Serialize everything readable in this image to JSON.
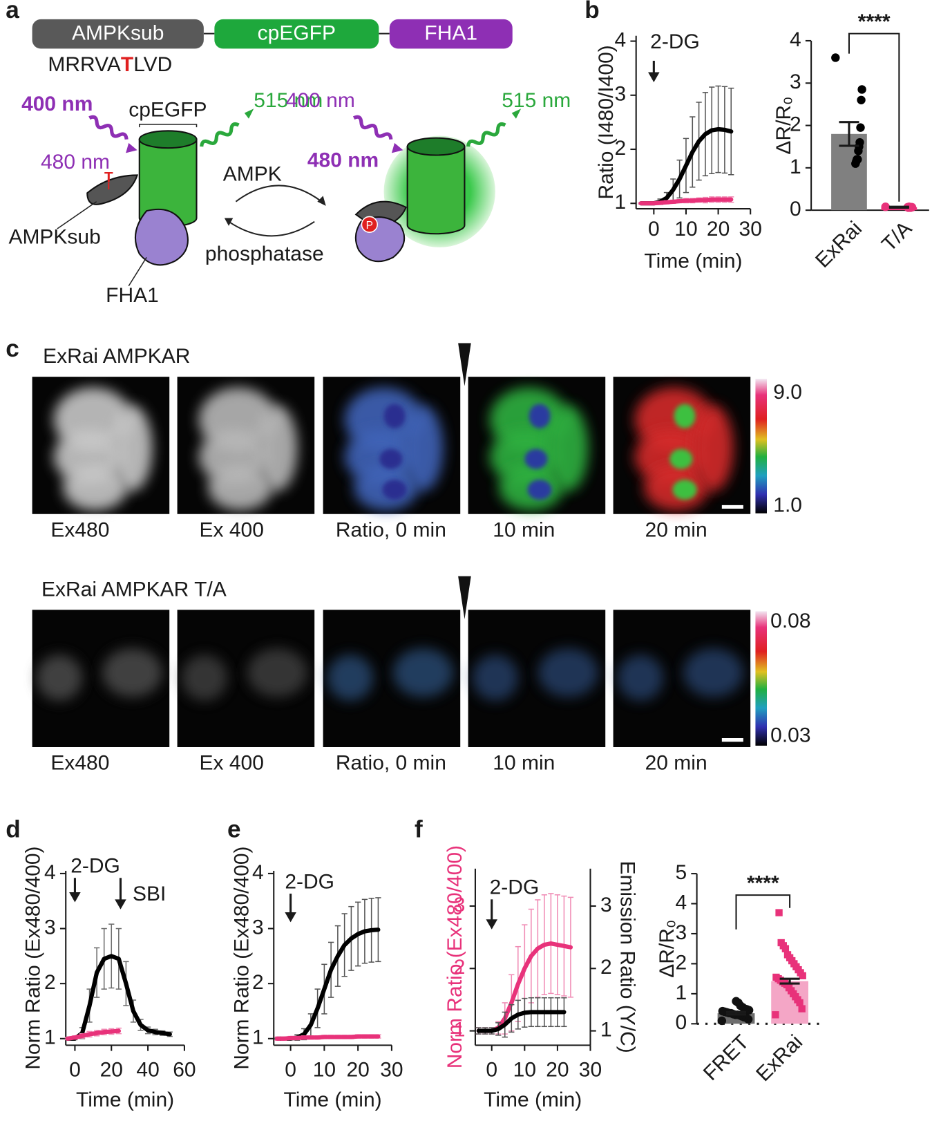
{
  "panel_labels": [
    "a",
    "b",
    "c",
    "d",
    "e",
    "f"
  ],
  "diagram": {
    "domains": [
      "AMPKsub",
      "cpEGFP",
      "FHA1"
    ],
    "sequence": [
      "MRRVA",
      "T",
      "LVD"
    ],
    "left": {
      "ex400": "400 nm",
      "cpegfp": "cpEGFP",
      "em515": "515 nm",
      "ex480": "480 nm",
      "site": "T",
      "sub": "AMPKsub",
      "fha1": "FHA1"
    },
    "ampk": "AMPK",
    "phosphatase": "phosphatase",
    "right": {
      "ex400": "400 nm",
      "em515": "515 nm",
      "ex480": "480 nm",
      "site": "P"
    }
  },
  "imaging": {
    "rows": [
      {
        "title": "ExRai AMPKAR",
        "captions": [
          "Ex480",
          "Ex 400",
          "Ratio, 0 min",
          "10 min",
          "20 min"
        ],
        "colorbar": [
          "9.0",
          "1.0"
        ]
      },
      {
        "title": "ExRai AMPKAR T/A",
        "captions": [
          "Ex480",
          "Ex 400",
          "Ratio, 0 min",
          "10 min",
          "20 min"
        ],
        "colorbar": [
          "0.08",
          "0.03"
        ]
      }
    ]
  },
  "chart_data": [
    {
      "type": "line",
      "xlabel": "Time (min)",
      "ylabel": "Ratio (I480/I400)",
      "x": [
        -4,
        -2,
        0,
        2,
        4,
        6,
        8,
        10,
        12,
        14,
        16,
        18,
        20,
        22,
        24
      ],
      "xlim": [
        -5.5,
        30
      ],
      "xticks": [
        0,
        10,
        20,
        30
      ],
      "ylim": [
        0.9,
        4.1
      ],
      "yticks": [
        1,
        2,
        3,
        4
      ],
      "series": [
        {
          "color": "#000000",
          "error_color": "#555555",
          "values": [
            1.0,
            1.0,
            1.0,
            1.03,
            1.1,
            1.25,
            1.45,
            1.7,
            1.95,
            2.15,
            2.28,
            2.35,
            2.37,
            2.36,
            2.33
          ],
          "errors": [
            0.01,
            0.01,
            0.02,
            0.05,
            0.1,
            0.2,
            0.35,
            0.5,
            0.65,
            0.72,
            0.77,
            0.8,
            0.8,
            0.8,
            0.8
          ]
        },
        {
          "color": "#e8327a",
          "error_color": "#f08cb5",
          "values": [
            1.0,
            1.0,
            1.0,
            1.01,
            1.02,
            1.03,
            1.04,
            1.05,
            1.05,
            1.06,
            1.06,
            1.07,
            1.07,
            1.07,
            1.07
          ],
          "errors": [
            0.01,
            0.01,
            0.02,
            0.02,
            0.03,
            0.03,
            0.03,
            0.04,
            0.04,
            0.04,
            0.05,
            0.05,
            0.05,
            0.05,
            0.05
          ]
        }
      ],
      "annotations": [
        {
          "text": "2-DG",
          "x": 0
        }
      ]
    },
    {
      "type": "bar",
      "ylabel": "ΔR/R₀",
      "categories": [
        "ExRai",
        "T/A"
      ],
      "values": [
        1.8,
        0.07
      ],
      "errors": [
        0.28,
        0.01
      ],
      "colors": [
        "#808080",
        "#e8327a"
      ],
      "point_colors": [
        "#000000",
        "#e8327a"
      ],
      "points": [
        [
          3.6,
          2.85,
          2.6,
          1.95,
          1.6,
          1.5,
          1.4,
          1.2,
          1.2,
          1.15,
          1.1
        ],
        [
          0.08,
          0.07,
          0.07,
          0.06,
          0.07,
          0.08,
          0.06,
          0.07
        ]
      ],
      "ylim": [
        0,
        4
      ],
      "yticks": [
        0,
        1,
        2,
        3,
        4
      ],
      "significance": "****"
    },
    {
      "type": "line",
      "xlabel": "Time (min)",
      "ylabel": "Norm Ratio (Ex480/400)",
      "x": [
        -4,
        0,
        4,
        8,
        12,
        16,
        20,
        24,
        28,
        32,
        36,
        40,
        44,
        48,
        52
      ],
      "xlim": [
        -5,
        60
      ],
      "xticks": [
        0,
        20,
        40,
        60
      ],
      "ylim": [
        0.88,
        4.05
      ],
      "yticks": [
        1,
        2,
        3,
        4
      ],
      "series": [
        {
          "color": "#000000",
          "error_color": "#6e6e6e",
          "values": [
            1.0,
            1.0,
            1.1,
            1.6,
            2.2,
            2.45,
            2.5,
            2.45,
            2.0,
            1.5,
            1.25,
            1.15,
            1.12,
            1.1,
            1.08
          ],
          "errors": [
            0.01,
            0.02,
            0.1,
            0.3,
            0.45,
            0.55,
            0.58,
            0.55,
            0.4,
            0.2,
            0.1,
            0.06,
            0.05,
            0.04,
            0.04
          ]
        },
        {
          "color": "#e8327a",
          "error_color": "#f08cb5",
          "values": [
            1.0,
            1.02,
            1.05,
            1.08,
            1.1,
            1.12,
            1.13,
            1.14,
            null,
            null,
            null,
            null,
            null,
            null,
            null
          ],
          "errors": [
            0.02,
            0.03,
            0.04,
            0.05,
            0.05,
            0.05,
            0.05,
            0.05,
            null,
            null,
            null,
            null,
            null,
            null,
            null
          ]
        }
      ],
      "annotations": [
        {
          "text": "2-DG",
          "x": 0
        },
        {
          "text": "SBI",
          "x": 25
        }
      ]
    },
    {
      "type": "line",
      "xlabel": "Time (min)",
      "ylabel": "Norm Ratio (Ex480/400)",
      "x": [
        -4,
        -2,
        0,
        2,
        4,
        6,
        8,
        10,
        12,
        14,
        16,
        18,
        20,
        22,
        24,
        26
      ],
      "xlim": [
        -5,
        30
      ],
      "xticks": [
        0,
        10,
        20,
        30
      ],
      "ylim": [
        0.88,
        4.05
      ],
      "yticks": [
        1,
        2,
        3,
        4
      ],
      "series": [
        {
          "color": "#000000",
          "error_color": "#555555",
          "values": [
            1.0,
            1.0,
            1.0,
            1.02,
            1.08,
            1.25,
            1.55,
            1.9,
            2.25,
            2.5,
            2.7,
            2.82,
            2.9,
            2.95,
            2.97,
            2.98
          ],
          "errors": [
            0.01,
            0.01,
            0.02,
            0.05,
            0.1,
            0.2,
            0.35,
            0.45,
            0.5,
            0.55,
            0.57,
            0.58,
            0.58,
            0.58,
            0.58,
            0.58
          ]
        },
        {
          "color": "#e8327a",
          "error_color": "#f08cb5",
          "values": [
            1.0,
            1.0,
            1.01,
            1.01,
            1.02,
            1.02,
            1.02,
            1.03,
            1.03,
            1.03,
            1.03,
            1.03,
            1.04,
            1.04,
            1.04,
            1.04
          ],
          "errors": [
            0.03,
            0.03,
            0.03,
            0.03,
            0.03,
            0.03,
            0.03,
            0.03,
            0.03,
            0.03,
            0.03,
            0.03,
            0.03,
            0.03,
            0.03,
            0.03
          ]
        }
      ],
      "annotations": [
        {
          "text": "2-DG",
          "x": 0
        }
      ]
    },
    {
      "type": "line",
      "xlabel": "Time (min)",
      "ylabel": "Norm Ratio (Ex480/400)",
      "ylabel_color": "#e8327a",
      "y2label": "Emission Ratio (Y/C)",
      "x": [
        -4,
        -2,
        0,
        2,
        4,
        6,
        8,
        10,
        12,
        14,
        16,
        18,
        20,
        22,
        24
      ],
      "xlim": [
        -5,
        30
      ],
      "xticks": [
        0,
        10,
        20,
        30
      ],
      "ylim": [
        0.77,
        3.6
      ],
      "yticks": [
        1,
        2,
        3
      ],
      "y2lim": [
        0.77,
        3.6
      ],
      "y2ticks": [
        1,
        2,
        3
      ],
      "series": [
        {
          "color": "#e8327a",
          "error_color": "#f08cb5",
          "values": [
            1.0,
            1.0,
            1.0,
            1.05,
            1.2,
            1.45,
            1.75,
            2.0,
            2.2,
            2.32,
            2.38,
            2.4,
            2.38,
            2.36,
            2.34
          ],
          "errors": [
            0.05,
            0.05,
            0.05,
            0.1,
            0.25,
            0.45,
            0.6,
            0.7,
            0.75,
            0.78,
            0.8,
            0.8,
            0.8,
            0.8,
            0.8
          ]
        },
        {
          "color": "#000000",
          "error_color": "#555555",
          "axis": "y2",
          "values": [
            1.0,
            1.0,
            1.0,
            1.03,
            1.1,
            1.2,
            1.26,
            1.29,
            1.3,
            1.3,
            1.3,
            1.3,
            1.3,
            1.3,
            null
          ],
          "errors": [
            0.05,
            0.05,
            0.05,
            0.1,
            0.2,
            0.22,
            0.23,
            0.23,
            0.23,
            0.23,
            0.23,
            0.23,
            0.23,
            0.23,
            null
          ]
        }
      ],
      "annotations": [
        {
          "text": "2-DG",
          "x": 0
        }
      ]
    },
    {
      "type": "bar",
      "ylabel": "ΔR/R₀",
      "categories": [
        "FRET",
        "ExRai"
      ],
      "values": [
        0.35,
        1.42
      ],
      "errors": [
        0.04,
        0.08
      ],
      "colors": [
        "#6e6e6e",
        "#f4a6c6"
      ],
      "point_colors": [
        "#111111",
        "#e8327a"
      ],
      "points": [
        [
          0.1,
          0.15,
          0.2,
          0.22,
          0.25,
          0.28,
          0.3,
          0.3,
          0.32,
          0.35,
          0.36,
          0.38,
          0.4,
          0.42,
          0.45,
          0.48,
          0.5,
          0.55,
          0.6,
          0.7,
          0.75
        ],
        [
          0.3,
          0.5,
          0.7,
          0.8,
          0.9,
          1.0,
          1.1,
          1.2,
          1.3,
          1.35,
          1.4,
          1.45,
          1.5,
          1.55,
          1.6,
          1.7,
          1.8,
          1.9,
          2.0,
          2.1,
          2.2,
          2.3,
          2.5,
          2.6,
          2.7,
          3.7
        ]
      ],
      "ylim": [
        0,
        5
      ],
      "yticks": [
        0,
        1,
        2,
        3,
        4,
        5
      ],
      "significance": "****"
    }
  ]
}
